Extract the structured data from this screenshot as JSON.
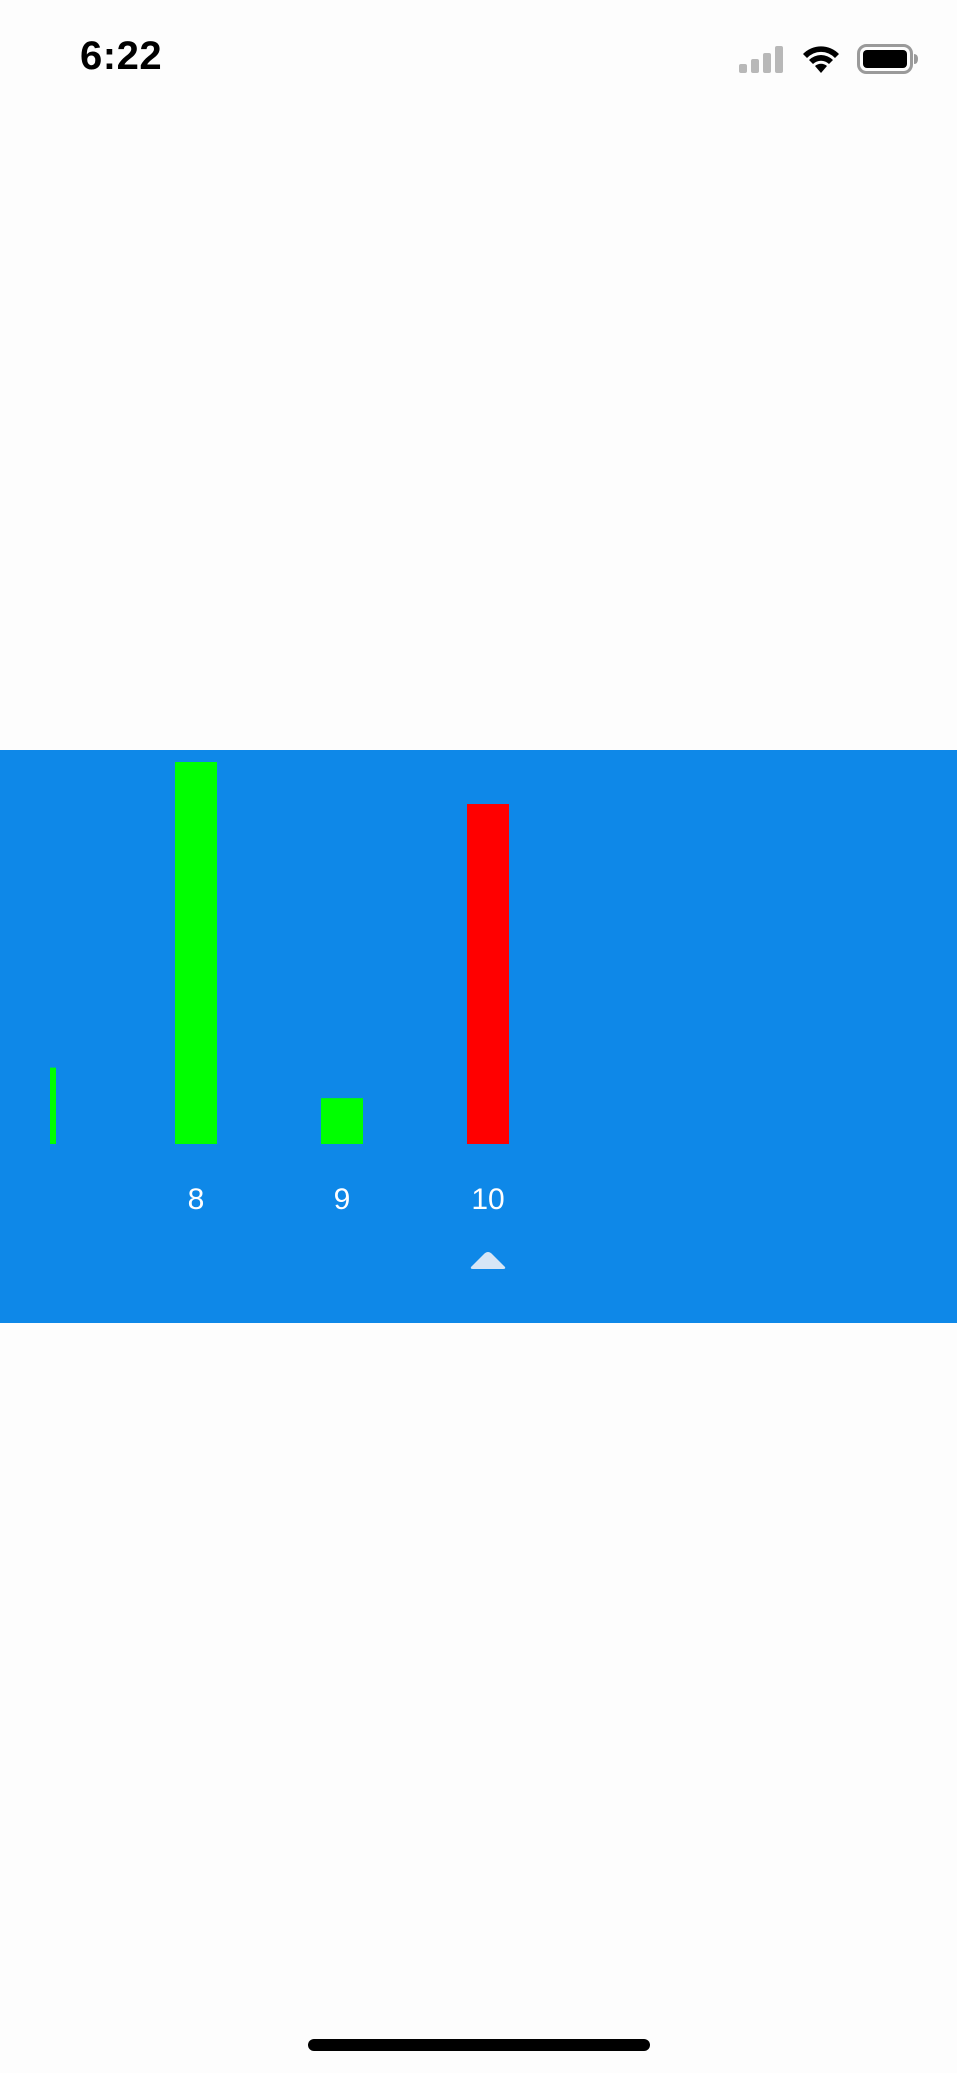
{
  "status_bar": {
    "time": "6:22"
  },
  "icons": {
    "signal": "cellular-signal-icon",
    "wifi": "wifi-icon",
    "battery": "battery-icon",
    "selector": "caret-up-icon"
  },
  "colors": {
    "panel_background": "#0e88e8",
    "bar_up": "#00ff00",
    "bar_down": "#ff0000",
    "label_text": "#ffffff",
    "caret": "#d6e6f6"
  },
  "chart_data": {
    "type": "bar",
    "categories": [
      "",
      "8",
      "9",
      "10"
    ],
    "values": [
      0.2,
      1.0,
      0.12,
      0.89
    ],
    "bar_colors": [
      "#00ff00",
      "#00ff00",
      "#00ff00",
      "#ff0000"
    ],
    "ylim": [
      0,
      1
    ],
    "selected_index": 3,
    "grid": false,
    "title": "",
    "xlabel": "",
    "ylabel": ""
  }
}
